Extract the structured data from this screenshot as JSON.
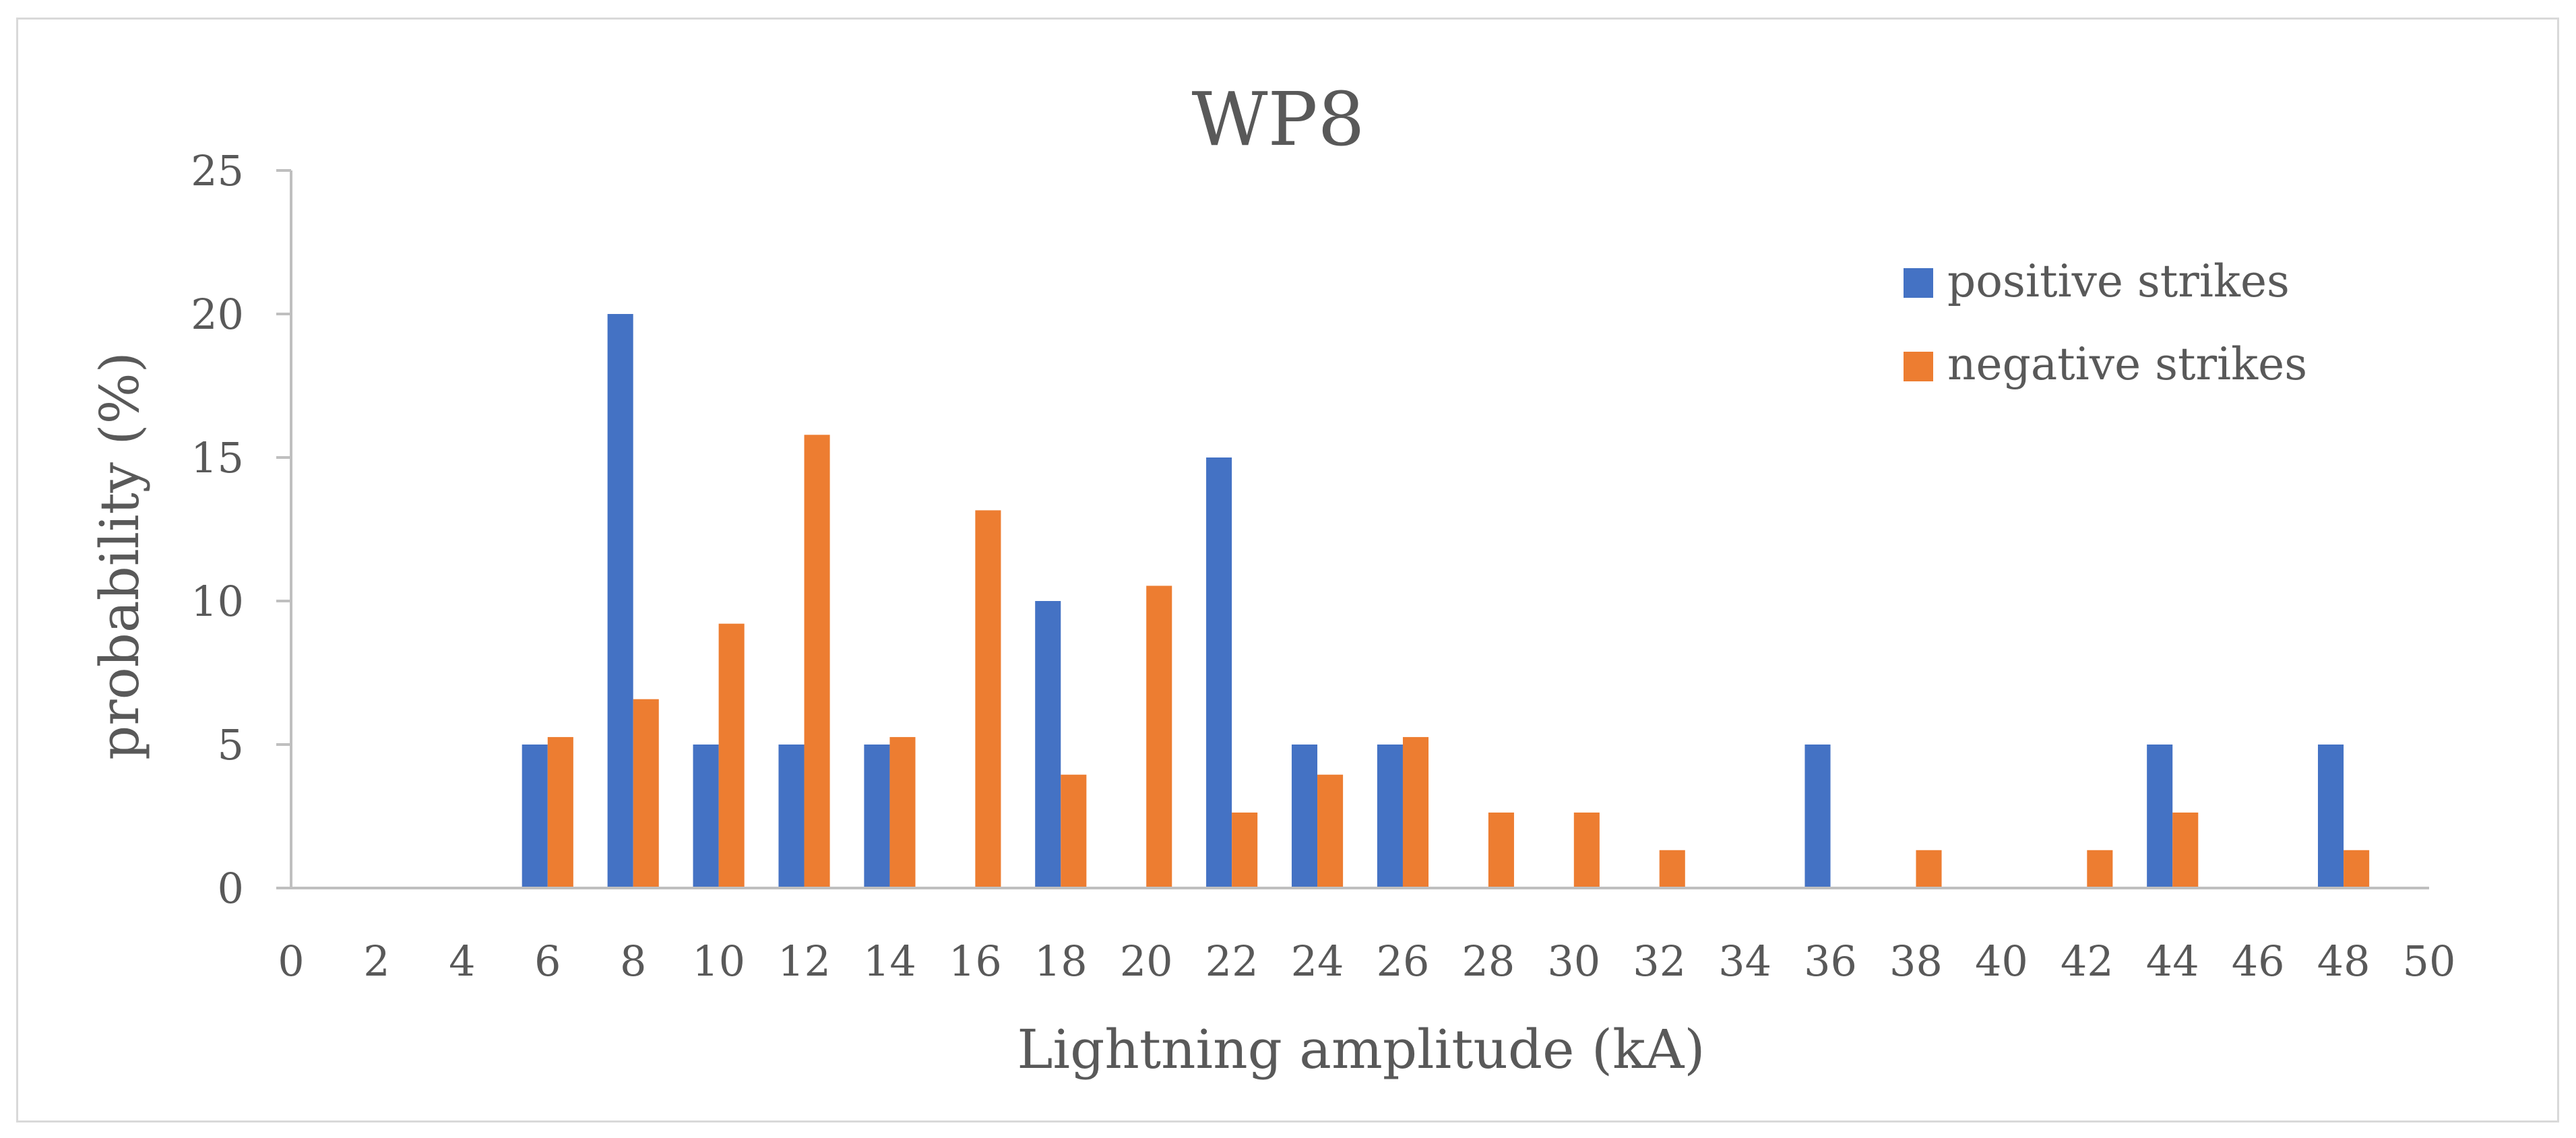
{
  "chart_data": {
    "type": "bar",
    "title": "WP8",
    "xlabel": "Lightning amplitude (kA)",
    "ylabel": "probability (%)",
    "ylim": [
      0,
      25
    ],
    "yticks": [
      "0",
      "5",
      "10",
      "15",
      "20",
      "25"
    ],
    "xlim": [
      0,
      50
    ],
    "xticks": [
      "0",
      "2",
      "4",
      "6",
      "8",
      "10",
      "12",
      "14",
      "16",
      "18",
      "20",
      "22",
      "24",
      "26",
      "28",
      "30",
      "32",
      "34",
      "36",
      "38",
      "40",
      "42",
      "44",
      "46",
      "48",
      "50"
    ],
    "legend_position": "top-right",
    "categories": [
      0,
      2,
      4,
      6,
      8,
      10,
      12,
      14,
      16,
      18,
      20,
      22,
      24,
      26,
      28,
      30,
      32,
      34,
      36,
      38,
      40,
      42,
      44,
      46,
      48
    ],
    "series": [
      {
        "name": "positive strikes",
        "color": "#4472c4",
        "values": [
          0,
          0,
          0,
          5,
          20,
          5,
          5,
          5,
          0,
          10,
          0,
          15,
          5,
          5,
          0,
          0,
          0,
          0,
          5,
          0,
          0,
          0,
          5,
          0,
          5
        ]
      },
      {
        "name": "negative strikes",
        "color": "#ed7d31",
        "values": [
          0,
          0,
          0,
          5.26,
          6.58,
          9.21,
          15.79,
          5.26,
          13.16,
          3.95,
          10.53,
          2.63,
          3.95,
          5.26,
          2.63,
          2.63,
          1.32,
          0,
          0,
          1.32,
          0,
          1.32,
          2.63,
          0,
          1.32
        ]
      }
    ]
  }
}
